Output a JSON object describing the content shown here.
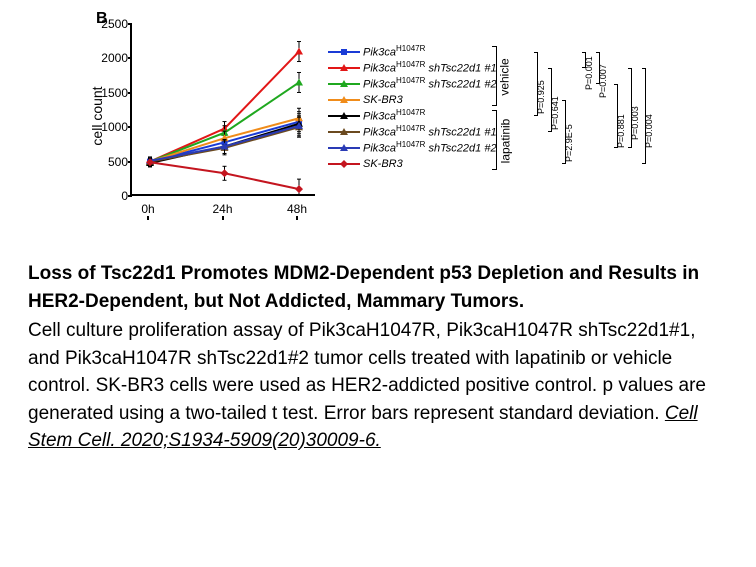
{
  "panel_label": "B",
  "chart": {
    "type": "line",
    "x_categories": [
      "0h",
      "24h",
      "48h"
    ],
    "y_label": "cell count",
    "ylim": [
      0,
      2500
    ],
    "yticks": [
      0,
      500,
      1000,
      1500,
      2000,
      2500
    ],
    "series": [
      {
        "name": "Pik3ca-H1047R-vehicle",
        "color": "#1a3bd6",
        "marker": "square",
        "values": [
          500,
          780,
          1080
        ]
      },
      {
        "name": "Pik3ca-H1047R-shTsc22d1-1-vehicle",
        "color": "#e21717",
        "marker": "triangle",
        "values": [
          500,
          980,
          2100
        ]
      },
      {
        "name": "Pik3ca-H1047R-shTsc22d1-2-vehicle",
        "color": "#1fa81f",
        "marker": "triangle",
        "values": [
          500,
          920,
          1650
        ]
      },
      {
        "name": "SK-BR3-vehicle",
        "color": "#f08c1a",
        "marker": "triangle",
        "values": [
          500,
          840,
          1130
        ]
      },
      {
        "name": "Pik3ca-H1047R-lapatinib",
        "color": "#000000",
        "marker": "triangle",
        "values": [
          480,
          720,
          1050
        ]
      },
      {
        "name": "Pik3ca-H1047R-shTsc22d1-1-lapatinib",
        "color": "#6b4a1f",
        "marker": "triangle",
        "values": [
          500,
          700,
          1000
        ]
      },
      {
        "name": "Pik3ca-H1047R-shTsc22d1-2-lapatinib",
        "color": "#2a3bb5",
        "marker": "triangle",
        "values": [
          510,
          720,
          1020
        ]
      },
      {
        "name": "SK-BR3-lapatinib",
        "color": "#c4151f",
        "marker": "diamond",
        "values": [
          490,
          330,
          100
        ]
      }
    ],
    "background_color": "#ffffff",
    "axis_color": "#000000"
  },
  "legend": {
    "groups": [
      {
        "label": "vehicle",
        "items": [
          {
            "html": "<i>Pik3ca</i><sup>H1047R</sup>",
            "color": "#1a3bd6",
            "marker": "square"
          },
          {
            "html": "<i>Pik3ca</i><sup>H1047R</sup> sh<i>Tsc22d1</i> #1",
            "color": "#e21717",
            "marker": "triangle"
          },
          {
            "html": "<i>Pik3ca</i><sup>H1047R</sup> sh<i>Tsc22d1</i> #2",
            "color": "#1fa81f",
            "marker": "triangle"
          },
          {
            "html": "SK-BR3",
            "color": "#f08c1a",
            "marker": "triangle"
          }
        ]
      },
      {
        "label": "lapatinib",
        "items": [
          {
            "html": "<i>Pik3ca</i><sup>H1047R</sup>",
            "color": "#000000",
            "marker": "triangle"
          },
          {
            "html": "<i>Pik3ca</i><sup>H1047R</sup> sh<i>Tsc22d1</i> #1",
            "color": "#6b4a1f",
            "marker": "triangle"
          },
          {
            "html": "<i>Pik3ca</i><sup>H1047R</sup> sh<i>Tsc22d1</i> #2",
            "color": "#2a3bb5",
            "marker": "triangle"
          },
          {
            "html": "SK-BR3",
            "color": "#c4151f",
            "marker": "diamond"
          }
        ]
      }
    ]
  },
  "pvalues": {
    "inner": [
      "P=0.925",
      "P=0.641",
      "P=2.9E-5"
    ],
    "mid": [
      "P=0.001",
      "P=0.007"
    ],
    "outer": [
      "P=0.881",
      "P=0.003",
      "P=0.004"
    ]
  },
  "caption": {
    "title": "Loss of Tsc22d1 Promotes MDM2-Dependent p53 Depletion and Results in HER2-Dependent, but Not Addicted, Mammary Tumors.",
    "body": "Cell culture proliferation assay of Pik3caH1047R, Pik3caH1047R shTsc22d1#1, and Pik3caH1047R shTsc22d1#2 tumor cells treated with lapatinib or vehicle control. SK-BR3 cells were used as HER2-addicted positive control. p values are generated using a two-tailed t test. Error bars represent standard deviation. ",
    "citation": "Cell Stem Cell. 2020;S1934-5909(20)30009-6."
  }
}
